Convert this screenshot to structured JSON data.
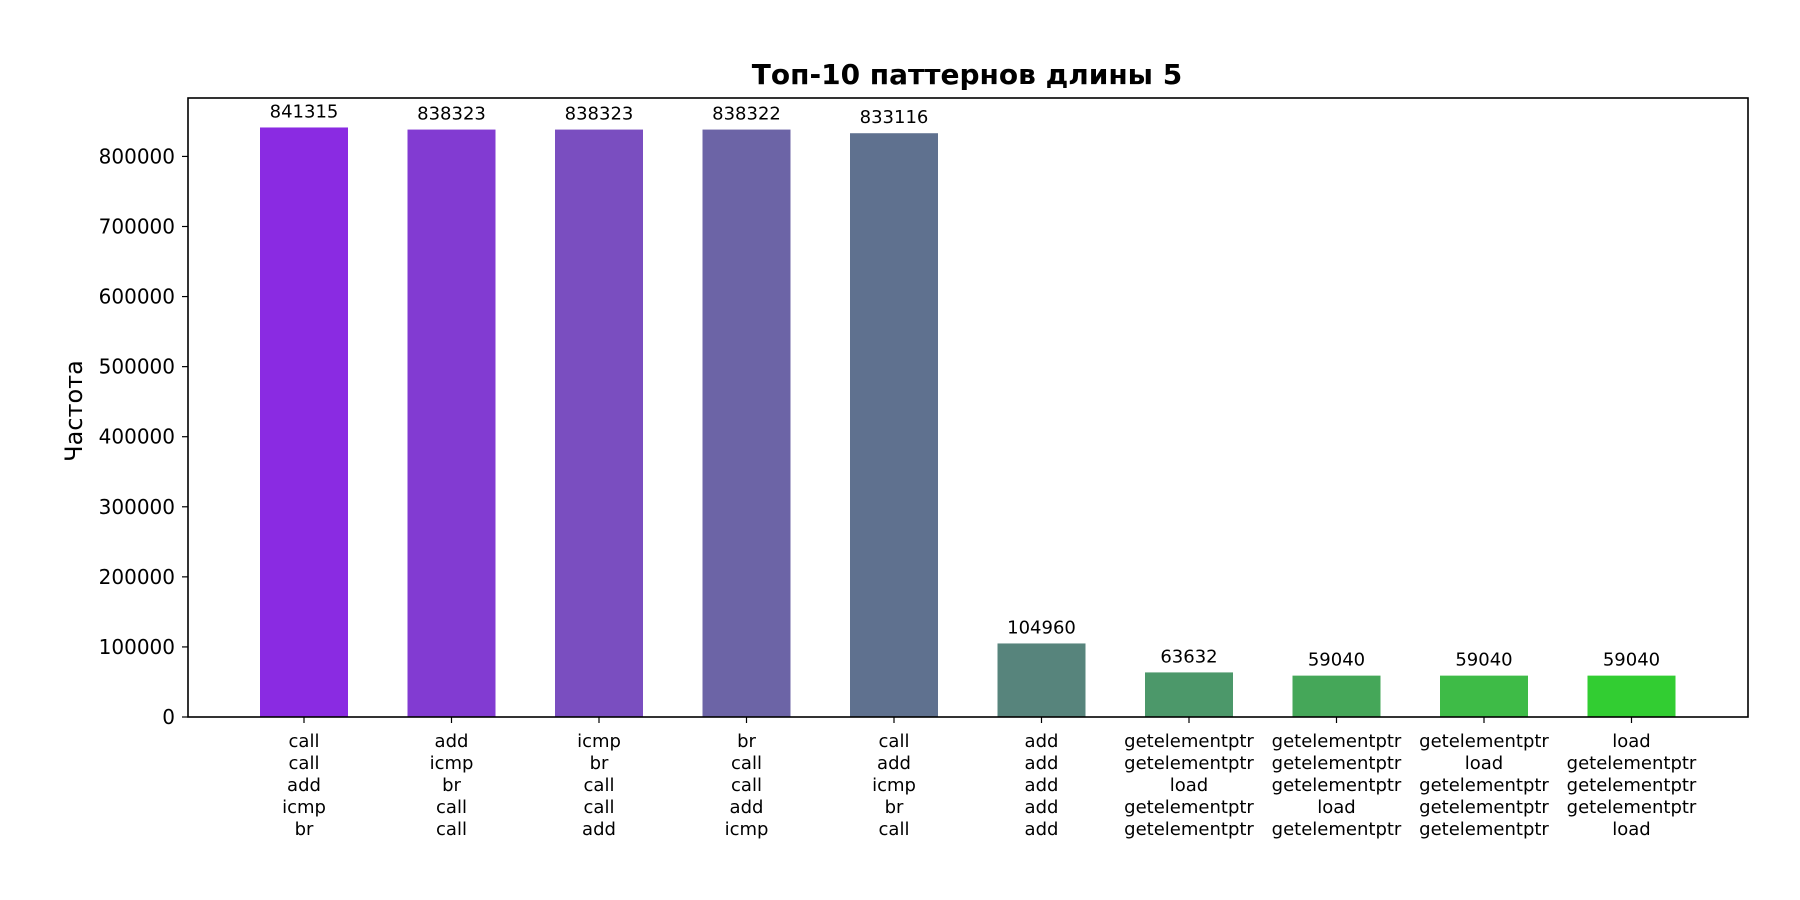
{
  "chart_data": {
    "type": "bar",
    "title": "Топ-10 паттернов длины 5",
    "xlabel": "",
    "ylabel": "Частота",
    "ylim": [
      0,
      883381
    ],
    "yticks": [
      0,
      100000,
      200000,
      300000,
      400000,
      500000,
      600000,
      700000,
      800000
    ],
    "grid": false,
    "categories": [
      [
        "call",
        "call",
        "add",
        "icmp",
        "br"
      ],
      [
        "add",
        "icmp",
        "br",
        "call",
        "call"
      ],
      [
        "icmp",
        "br",
        "call",
        "call",
        "add"
      ],
      [
        "br",
        "call",
        "call",
        "add",
        "icmp"
      ],
      [
        "call",
        "add",
        "icmp",
        "br",
        "call"
      ],
      [
        "add",
        "add",
        "add",
        "add",
        "add"
      ],
      [
        "getelementptr",
        "getelementptr",
        "load",
        "getelementptr",
        "getelementptr"
      ],
      [
        "getelementptr",
        "getelementptr",
        "getelementptr",
        "load",
        "getelementptr"
      ],
      [
        "getelementptr",
        "load",
        "getelementptr",
        "getelementptr",
        "getelementptr"
      ],
      [
        "load",
        "getelementptr",
        "getelementptr",
        "getelementptr",
        "load"
      ]
    ],
    "values": [
      841315,
      838323,
      838323,
      838322,
      833116,
      104960,
      63632,
      59040,
      59040,
      59040
    ],
    "value_labels": [
      "841315",
      "838323",
      "838323",
      "838322",
      "833116",
      "104960",
      "63632",
      "59040",
      "59040",
      "59040"
    ],
    "colors": [
      "#8a2be2",
      "#823bd2",
      "#7a4ec0",
      "#6c64a6",
      "#5f718f",
      "#57847c",
      "#4c986a",
      "#45a759",
      "#3ebb47",
      "#32cd32"
    ]
  }
}
